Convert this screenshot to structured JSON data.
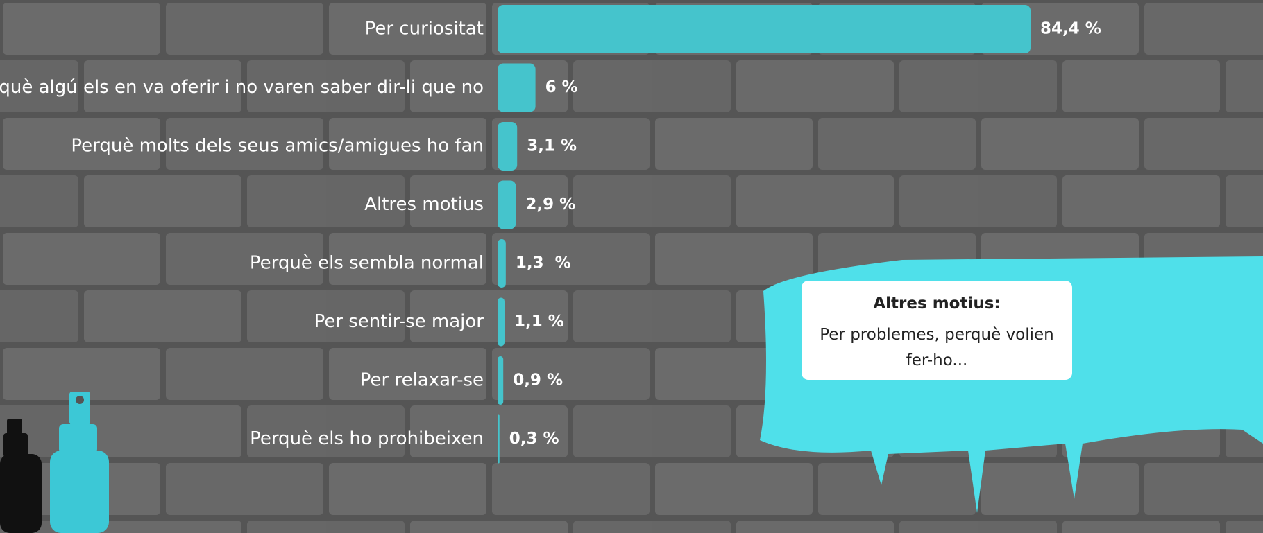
{
  "chart_data": {
    "type": "bar",
    "orientation": "horizontal",
    "categories": [
      "Per curiositat",
      "Perquè algú els en va oferir i no varen saber dir-li que no",
      "Perquè molts dels seus amics/amigues ho fan",
      "Altres motius",
      "Perquè els sembla normal",
      "Per sentir-se major",
      "Per relaxar-se",
      "Perquè els ho prohibeixen"
    ],
    "values": [
      84.4,
      6,
      3.1,
      2.9,
      1.3,
      1.1,
      0.9,
      0.3
    ],
    "value_labels": [
      "84,4 %",
      "6 %",
      "3,1 %",
      "2,9 %",
      "1,3  %",
      "1,1 %",
      "0,9 %",
      "0,3 %"
    ],
    "color": "#45c4cc",
    "xlim": [
      0,
      100
    ],
    "annotation": {
      "title": "Altres  motius:",
      "text": "Per problemes, perquè volien fer-ho..."
    }
  }
}
